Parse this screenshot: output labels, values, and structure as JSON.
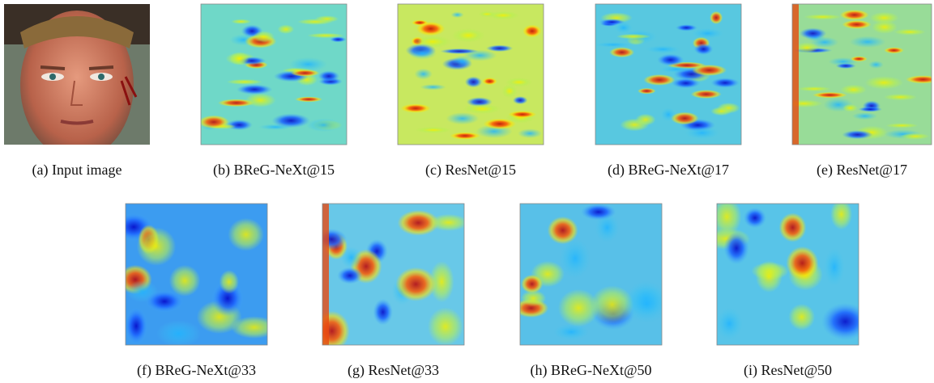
{
  "figure": {
    "captions": [
      "(a) Input image",
      "(b) BReG-NeXt@15",
      "(c) ResNet@15",
      "(d) BReG-NeXt@17",
      "(e) ResNet@17",
      "(f) BReG-NeXt@33",
      "(g) ResNet@33",
      "(h) BReG-NeXt@50",
      "(i) ResNet@50"
    ]
  }
}
